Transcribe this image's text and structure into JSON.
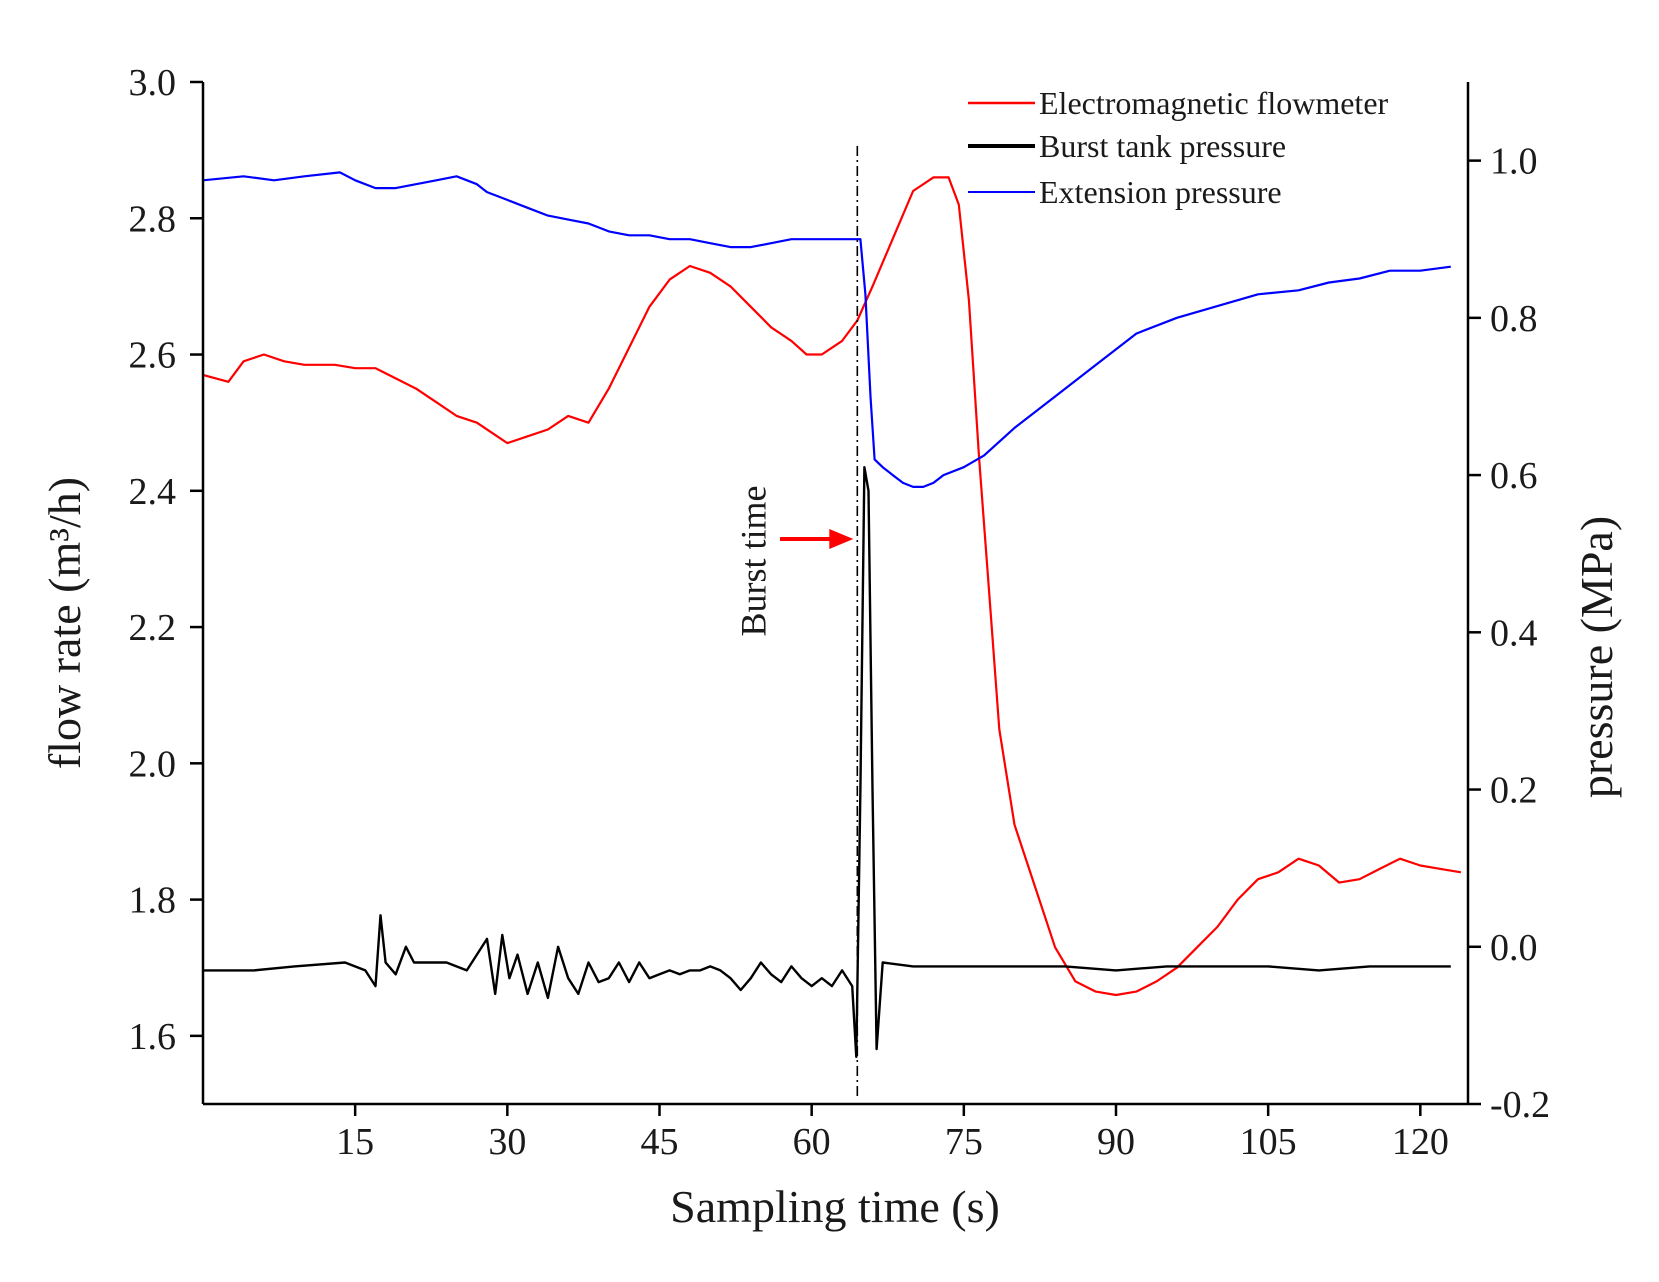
{
  "chart_data": {
    "type": "line",
    "title": "",
    "xlabel": "Sampling time  (s)",
    "ylabel_left": "flow rate  (m³/h)",
    "ylabel_right": "pressure  (MPa)",
    "xlim": [
      0,
      124.7
    ],
    "ylim_left": [
      1.5,
      3.0
    ],
    "ylim_right": [
      -0.2,
      1.1
    ],
    "x_ticks": [
      15,
      30,
      45,
      60,
      75,
      90,
      105,
      120
    ],
    "x_tick_labels": [
      "15",
      "30",
      "45",
      "60",
      "75",
      "90",
      "105",
      "120"
    ],
    "y_left_ticks": [
      1.6,
      1.8,
      2.0,
      2.2,
      2.4,
      2.6,
      2.8,
      3.0
    ],
    "y_left_tick_labels": [
      "1.6",
      "1.8",
      "2.0",
      "2.2",
      "2.4",
      "2.6",
      "2.8",
      "3.0"
    ],
    "y_right_ticks": [
      -0.2,
      0.0,
      0.2,
      0.4,
      0.6,
      0.8,
      1.0
    ],
    "y_right_tick_labels": [
      "-0.2",
      "0.0",
      "0.2",
      "0.4",
      "0.6",
      "0.8",
      "1.0"
    ],
    "grid": false,
    "legend_position": "top-right",
    "series": [
      {
        "name": "Electromagnetic flowmeter",
        "color": "#ff0000",
        "axis": "left",
        "x": [
          0,
          2.5,
          4,
          6,
          8,
          10,
          13,
          15,
          17,
          19,
          21,
          23,
          25,
          27,
          29,
          30,
          32,
          34,
          36,
          38,
          40,
          42,
          44,
          46,
          48,
          50,
          52,
          54,
          56,
          58,
          59.5,
          61,
          63,
          64.5,
          66,
          68,
          70,
          72,
          73.5,
          74.5,
          75.5,
          76.5,
          77.5,
          78.5,
          80,
          82,
          84,
          86,
          88,
          90,
          92,
          94,
          96,
          98,
          100,
          102,
          104,
          106,
          108,
          109,
          110,
          112,
          114,
          116,
          118,
          120,
          122,
          124
        ],
        "values": [
          2.57,
          2.56,
          2.59,
          2.6,
          2.59,
          2.585,
          2.585,
          2.58,
          2.58,
          2.565,
          2.55,
          2.53,
          2.51,
          2.5,
          2.48,
          2.47,
          2.48,
          2.49,
          2.51,
          2.5,
          2.55,
          2.61,
          2.67,
          2.71,
          2.73,
          2.72,
          2.7,
          2.67,
          2.64,
          2.62,
          2.6,
          2.6,
          2.62,
          2.65,
          2.7,
          2.77,
          2.84,
          2.86,
          2.86,
          2.82,
          2.68,
          2.45,
          2.25,
          2.05,
          1.91,
          1.82,
          1.73,
          1.68,
          1.665,
          1.66,
          1.665,
          1.68,
          1.7,
          1.73,
          1.76,
          1.8,
          1.83,
          1.84,
          1.86,
          1.855,
          1.85,
          1.825,
          1.83,
          1.845,
          1.86,
          1.85,
          1.845,
          1.84
        ]
      },
      {
        "name": "Burst tank pressure",
        "color": "#000000",
        "axis": "right",
        "x": [
          0,
          5,
          9,
          14,
          16,
          17,
          17.5,
          18,
          19,
          20,
          20.8,
          22,
          24,
          26,
          28,
          28.8,
          29.5,
          30.2,
          31,
          32,
          33,
          34,
          35,
          36,
          37,
          38,
          39,
          40,
          41,
          42,
          43,
          44,
          45,
          46,
          47,
          48,
          49,
          50,
          51,
          52,
          53,
          54,
          55,
          56,
          57,
          58,
          59,
          60,
          61,
          62,
          63,
          64,
          64.4,
          64.8,
          65.2,
          65.6,
          66,
          66.4,
          67,
          70,
          75,
          80,
          85,
          90,
          95,
          100,
          105,
          110,
          115,
          118,
          120,
          123
        ],
        "values": [
          -0.03,
          -0.03,
          -0.025,
          -0.02,
          -0.03,
          -0.05,
          0.04,
          -0.02,
          -0.035,
          0.0,
          -0.02,
          -0.02,
          -0.02,
          -0.03,
          0.01,
          -0.06,
          0.015,
          -0.04,
          -0.01,
          -0.06,
          -0.02,
          -0.065,
          0.0,
          -0.04,
          -0.06,
          -0.02,
          -0.045,
          -0.04,
          -0.02,
          -0.045,
          -0.02,
          -0.04,
          -0.035,
          -0.03,
          -0.035,
          -0.03,
          -0.03,
          -0.025,
          -0.03,
          -0.04,
          -0.055,
          -0.04,
          -0.02,
          -0.035,
          -0.045,
          -0.025,
          -0.04,
          -0.05,
          -0.04,
          -0.05,
          -0.03,
          -0.05,
          -0.14,
          0.2,
          0.61,
          0.58,
          0.2,
          -0.13,
          -0.02,
          -0.025,
          -0.025,
          -0.025,
          -0.025,
          -0.03,
          -0.025,
          -0.025,
          -0.025,
          -0.03,
          -0.025,
          -0.025,
          -0.025,
          -0.025
        ]
      },
      {
        "name": "Extension pressure",
        "color": "#0000ff",
        "axis": "right",
        "x": [
          0,
          4,
          7,
          10,
          13.5,
          15,
          17,
          19,
          21,
          23,
          25,
          27,
          28,
          30,
          32,
          34,
          36,
          38,
          40,
          42,
          44,
          46,
          48,
          50,
          52,
          54,
          56,
          58,
          60,
          62,
          64,
          64.8,
          65.3,
          65.8,
          66.2,
          67,
          68,
          69,
          70,
          71,
          72,
          73,
          75,
          77,
          80,
          84,
          88,
          92,
          96,
          100,
          104,
          108,
          111,
          114,
          117,
          120,
          123
        ],
        "values": [
          0.975,
          0.98,
          0.975,
          0.98,
          0.985,
          0.975,
          0.965,
          0.965,
          0.97,
          0.975,
          0.98,
          0.97,
          0.96,
          0.95,
          0.94,
          0.93,
          0.925,
          0.92,
          0.91,
          0.905,
          0.905,
          0.9,
          0.9,
          0.895,
          0.89,
          0.89,
          0.895,
          0.9,
          0.9,
          0.9,
          0.9,
          0.9,
          0.83,
          0.7,
          0.62,
          0.61,
          0.6,
          0.59,
          0.585,
          0.585,
          0.59,
          0.6,
          0.61,
          0.625,
          0.66,
          0.7,
          0.74,
          0.78,
          0.8,
          0.815,
          0.83,
          0.835,
          0.845,
          0.85,
          0.86,
          0.86,
          0.865
        ]
      }
    ],
    "annotations": {
      "burst_label": "Burst time",
      "burst_x": 64.5
    }
  }
}
